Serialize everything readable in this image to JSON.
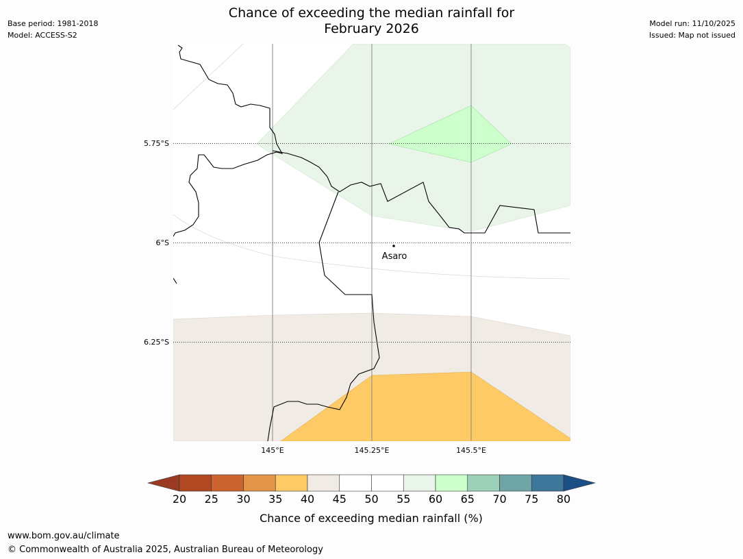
{
  "title_line1": "Chance of exceeding the median rainfall for",
  "title_line2": "February 2026",
  "meta": {
    "base_period": "Base period: 1981-2018",
    "model": "Model: ACCESS-S2",
    "model_run": "Model run: 11/10/2025",
    "issued": "Issued: Map not issued"
  },
  "map": {
    "lat_labels": [
      "5.75°S",
      "6°S",
      "6.25°S"
    ],
    "lon_labels": [
      "145°E",
      "145.25°E",
      "145.5°E"
    ],
    "place": "Asaro"
  },
  "colorbar": {
    "label": "Chance of exceeding median rainfall (%)",
    "ticks": [
      "20",
      "25",
      "30",
      "35",
      "40",
      "45",
      "50",
      "55",
      "60",
      "65",
      "70",
      "75",
      "80"
    ],
    "colors": [
      "#9a3a22",
      "#b04822",
      "#cc6430",
      "#e29448",
      "#fdca66",
      "#f0ebe4",
      "#ffffff",
      "#ffffff",
      "#e9f5e9",
      "#ccffcc",
      "#9dd0b8",
      "#6fa5a5",
      "#3d7799",
      "#1a4e85"
    ]
  },
  "footer": {
    "url": "www.bom.gov.au/climate",
    "copyright": "© Commonwealth of Australia 2025, Australian Bureau of Meteorology"
  }
}
